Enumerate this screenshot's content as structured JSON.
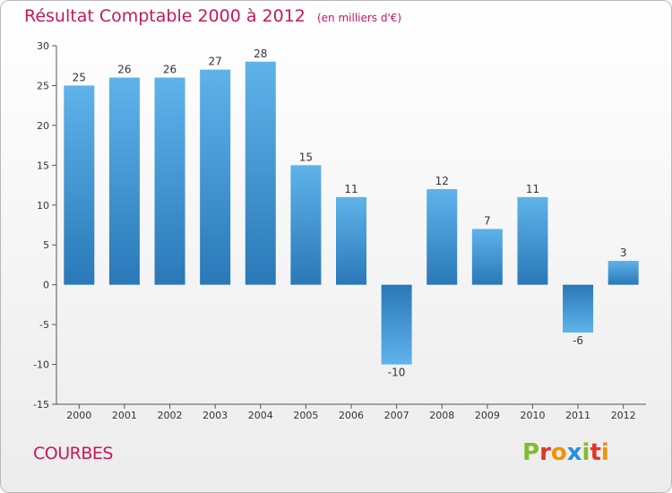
{
  "header": {
    "title": "Résultat Comptable 2000 à 2012",
    "unit": "(en milliers d'€)"
  },
  "footer": {
    "city": "COURBES",
    "logo_letters": [
      "P",
      "r",
      "o",
      "x",
      "i",
      "t",
      "i"
    ],
    "logo_colors": [
      "#7fbf2a",
      "#e5332a",
      "#f39200",
      "#2a8fd6",
      "#7fbf2a",
      "#e5332a",
      "#f39200"
    ]
  },
  "colors": {
    "bar_light": "#5fb3ea",
    "bar_dark": "#2a78b8",
    "title": "#c4195a"
  },
  "chart_data": {
    "type": "bar",
    "categories": [
      "2000",
      "2001",
      "2002",
      "2003",
      "2004",
      "2005",
      "2006",
      "2007",
      "2008",
      "2009",
      "2010",
      "2011",
      "2012"
    ],
    "values": [
      25,
      26,
      26,
      27,
      28,
      15,
      11,
      -10,
      12,
      7,
      11,
      -6,
      3
    ],
    "ylim": [
      -15,
      30
    ],
    "yticks": [
      30,
      25,
      20,
      15,
      10,
      5,
      0,
      -5,
      -10,
      -15
    ],
    "grid": false
  }
}
